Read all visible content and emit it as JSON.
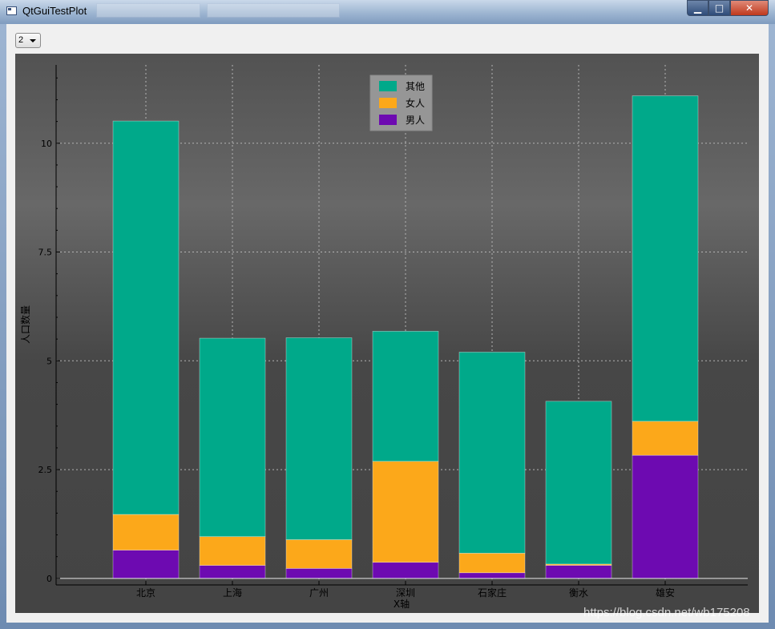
{
  "window": {
    "title": "QtGuiTestPlot",
    "controls": {
      "minimize": "▁",
      "maximize": "□",
      "close": "✕"
    }
  },
  "toolbar": {
    "combo_value": "2"
  },
  "watermark": "https://blog.csdn.net/wb175208",
  "colors": {
    "other": "#00a98a",
    "women": "#fca81a",
    "men": "#6d0ab1",
    "plot_bg": "#5a5a5a",
    "grid": "#b4b4b4"
  },
  "chart_data": {
    "type": "bar",
    "stacked": true,
    "categories": [
      "北京",
      "上海",
      "广州",
      "深圳",
      "石家庄",
      "衡水",
      "雄安"
    ],
    "series": [
      {
        "name": "男人",
        "color": "#6d0ab1",
        "values": [
          0.65,
          0.3,
          0.23,
          0.37,
          0.13,
          0.3,
          2.83
        ]
      },
      {
        "name": "女人",
        "color": "#fca81a",
        "values": [
          0.82,
          0.66,
          0.66,
          2.32,
          0.45,
          0.03,
          0.78
        ]
      },
      {
        "name": "其他",
        "color": "#00a98a",
        "values": [
          9.04,
          4.56,
          4.64,
          2.99,
          4.62,
          3.74,
          7.48
        ]
      }
    ],
    "xlabel": "X轴",
    "ylabel": "人口数量",
    "ylim": [
      -0.15,
      11.8
    ],
    "yticks": [
      0,
      2.5,
      5,
      7.5,
      10
    ],
    "ytick_labels": [
      "0",
      "2.5",
      "5",
      "7.5",
      "10"
    ],
    "grid": true,
    "legend_position": "top-center",
    "legend_order": [
      "其他",
      "女人",
      "男人"
    ]
  }
}
